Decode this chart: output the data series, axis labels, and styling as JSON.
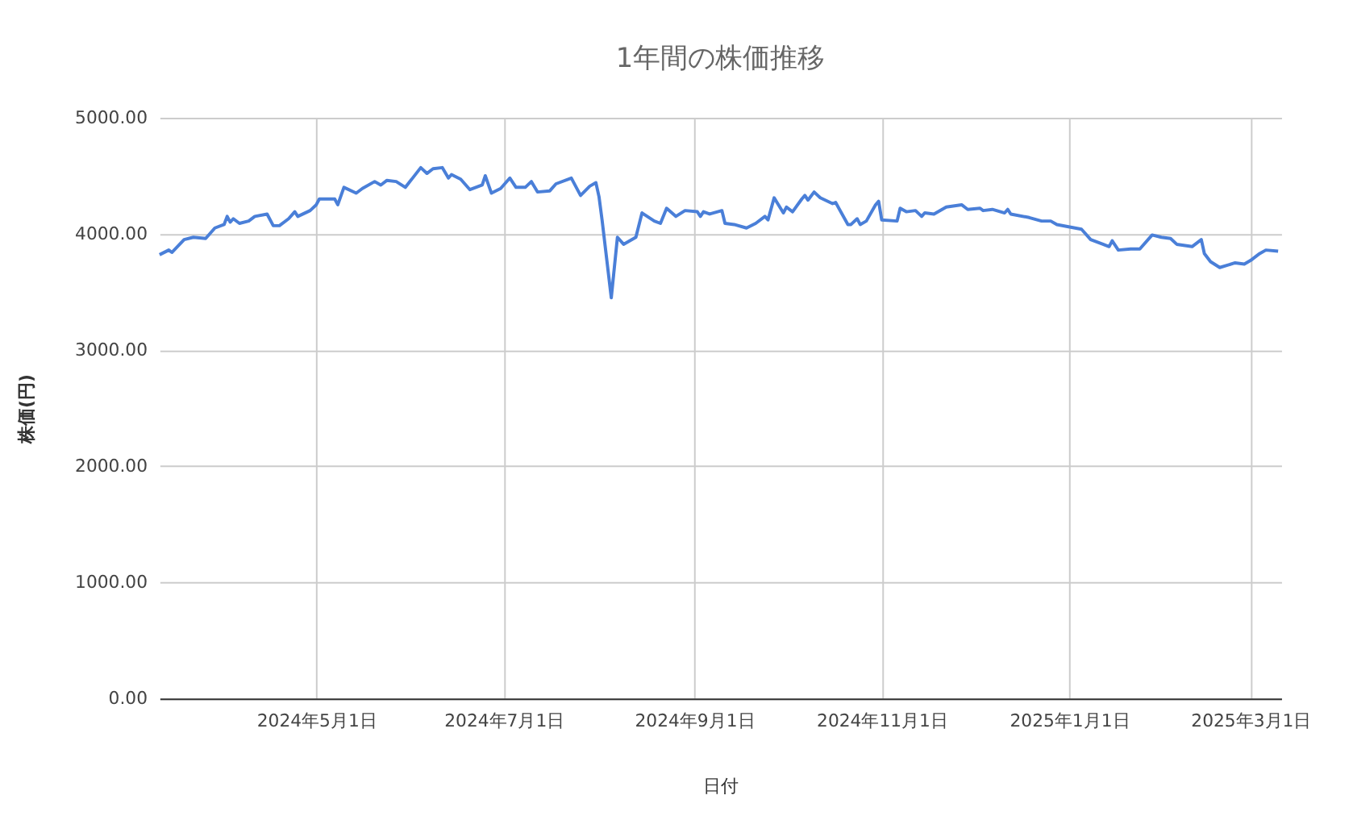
{
  "chart_data": {
    "type": "line",
    "title": "1年間の株価推移",
    "xlabel": "日付",
    "ylabel": "株価(円)",
    "x": [
      "2024-03-11",
      "2024-03-14",
      "2024-03-15",
      "2024-03-19",
      "2024-03-22",
      "2024-03-26",
      "2024-03-29",
      "2024-04-01",
      "2024-04-02",
      "2024-04-03",
      "2024-04-04",
      "2024-04-06",
      "2024-04-09",
      "2024-04-11",
      "2024-04-15",
      "2024-04-17",
      "2024-04-19",
      "2024-04-22",
      "2024-04-24",
      "2024-04-25",
      "2024-04-29",
      "2024-05-01",
      "2024-05-02",
      "2024-05-07",
      "2024-05-08",
      "2024-05-10",
      "2024-05-14",
      "2024-05-16",
      "2024-05-20",
      "2024-05-22",
      "2024-05-24",
      "2024-05-27",
      "2024-05-30",
      "2024-06-04",
      "2024-06-06",
      "2024-06-08",
      "2024-06-11",
      "2024-06-13",
      "2024-06-14",
      "2024-06-17",
      "2024-06-20",
      "2024-06-24",
      "2024-06-25",
      "2024-06-27",
      "2024-06-30",
      "2024-07-03",
      "2024-07-05",
      "2024-07-08",
      "2024-07-10",
      "2024-07-12",
      "2024-07-16",
      "2024-07-18",
      "2024-07-23",
      "2024-07-26",
      "2024-07-29",
      "2024-07-31",
      "2024-08-01",
      "2024-08-02",
      "2024-08-05",
      "2024-08-07",
      "2024-08-09",
      "2024-08-13",
      "2024-08-15",
      "2024-08-19",
      "2024-08-21",
      "2024-08-23",
      "2024-08-26",
      "2024-08-29",
      "2024-09-02",
      "2024-09-03",
      "2024-09-04",
      "2024-09-06",
      "2024-09-10",
      "2024-09-11",
      "2024-09-14",
      "2024-09-18",
      "2024-09-21",
      "2024-09-24",
      "2024-09-25",
      "2024-09-27",
      "2024-09-30",
      "2024-10-01",
      "2024-10-03",
      "2024-10-06",
      "2024-10-07",
      "2024-10-08",
      "2024-10-10",
      "2024-10-12",
      "2024-10-16",
      "2024-10-17",
      "2024-10-21",
      "2024-10-22",
      "2024-10-24",
      "2024-10-25",
      "2024-10-27",
      "2024-10-30",
      "2024-10-31",
      "2024-11-01",
      "2024-11-06",
      "2024-11-07",
      "2024-11-09",
      "2024-11-12",
      "2024-11-14",
      "2024-11-15",
      "2024-11-18",
      "2024-11-22",
      "2024-11-27",
      "2024-11-29",
      "2024-12-03",
      "2024-12-04",
      "2024-12-07",
      "2024-12-11",
      "2024-12-12",
      "2024-12-13",
      "2024-12-19",
      "2024-12-23",
      "2024-12-26",
      "2024-12-28",
      "2025-01-05",
      "2025-01-06",
      "2025-01-08",
      "2025-01-12",
      "2025-01-14",
      "2025-01-15",
      "2025-01-17",
      "2025-01-21",
      "2025-01-24",
      "2025-01-28",
      "2025-01-31",
      "2025-02-03",
      "2025-02-05",
      "2025-02-10",
      "2025-02-13",
      "2025-02-14",
      "2025-02-16",
      "2025-02-19",
      "2025-02-24",
      "2025-02-27",
      "2025-03-01",
      "2025-03-04",
      "2025-03-06",
      "2025-03-10"
    ],
    "series": [
      {
        "color": "#4a7fd8",
        "values": [
          3820,
          3860,
          3840,
          3950,
          3970,
          3960,
          4050,
          4080,
          4150,
          4100,
          4130,
          4090,
          4110,
          4150,
          4170,
          4070,
          4070,
          4130,
          4190,
          4150,
          4200,
          4250,
          4300,
          4300,
          4250,
          4400,
          4350,
          4390,
          4450,
          4420,
          4460,
          4450,
          4400,
          4570,
          4520,
          4560,
          4570,
          4480,
          4510,
          4470,
          4380,
          4420,
          4500,
          4350,
          4390,
          4480,
          4400,
          4400,
          4450,
          4360,
          4370,
          4430,
          4480,
          4330,
          4410,
          4440,
          4320,
          4120,
          3450,
          3970,
          3910,
          3970,
          4180,
          4110,
          4090,
          4220,
          4150,
          4200,
          4190,
          4150,
          4190,
          4170,
          4200,
          4090,
          4080,
          4050,
          4090,
          4150,
          4120,
          4310,
          4180,
          4230,
          4190,
          4300,
          4330,
          4290,
          4360,
          4310,
          4260,
          4270,
          4080,
          4080,
          4130,
          4080,
          4110,
          4250,
          4280,
          4120,
          4110,
          4220,
          4190,
          4200,
          4150,
          4180,
          4170,
          4230,
          4250,
          4210,
          4220,
          4200,
          4210,
          4180,
          4210,
          4170,
          4140,
          4110,
          4110,
          4080,
          4040,
          4010,
          3950,
          3910,
          3890,
          3940,
          3860,
          3870,
          3870,
          3990,
          3970,
          3960,
          3910,
          3890,
          3950,
          3830,
          3760,
          3710,
          3750,
          3740,
          3770,
          3830,
          3860,
          3850
        ]
      }
    ],
    "xlim": [
      "2024-03-11",
      "2025-03-11"
    ],
    "xticks": [
      {
        "value": "2024-05-01",
        "label": "2024年5月1日"
      },
      {
        "value": "2024-07-01",
        "label": "2024年7月1日"
      },
      {
        "value": "2024-09-01",
        "label": "2024年9月1日"
      },
      {
        "value": "2024-11-01",
        "label": "2024年11月1日"
      },
      {
        "value": "2025-01-01",
        "label": "2025年1月1日"
      },
      {
        "value": "2025-03-01",
        "label": "2025年3月1日"
      }
    ],
    "ylim": [
      0,
      5000
    ],
    "yticks": [
      {
        "value": 0,
        "label": "0.00"
      },
      {
        "value": 1000,
        "label": "1000.00"
      },
      {
        "value": 2000,
        "label": "2000.00"
      },
      {
        "value": 3000,
        "label": "3000.00"
      },
      {
        "value": 4000,
        "label": "4000.00"
      },
      {
        "value": 5000,
        "label": "5000.00"
      }
    ],
    "grid": true,
    "marker": "none",
    "line_style": "solid",
    "legend": false
  }
}
